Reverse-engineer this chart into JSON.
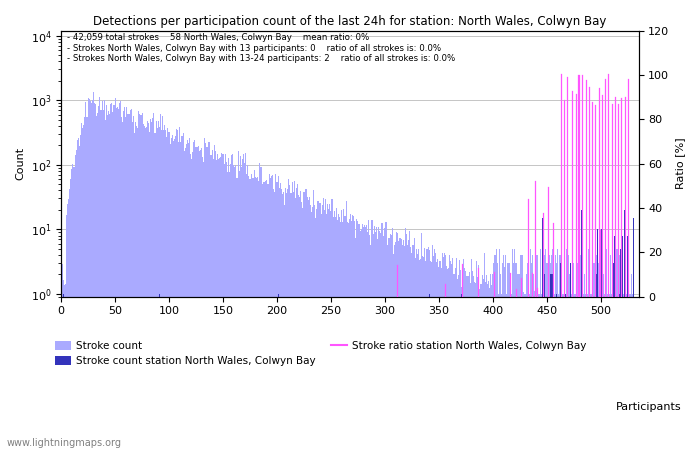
{
  "title": "Detections per participation count of the last 24h for station: North Wales, Colwyn Bay",
  "annotation_lines": [
    "42,059 total strokes    58 North Wales, Colwyn Bay    mean ratio: 0%",
    "Strokes North Wales, Colwyn Bay with 13 participants: 0    ratio of all strokes is: 0.0%",
    "Strokes North Wales, Colwyn Bay with 13-24 participants: 2    ratio of all strokes is: 0.0%"
  ],
  "xlabel": "Participants",
  "ylabel_left": "Count",
  "ylabel_right": "Ratio [%]",
  "xlim": [
    0,
    535
  ],
  "ylim_left": [
    0.9,
    12000
  ],
  "ylim_right": [
    0,
    120
  ],
  "bar_color_global": "#aaaaff",
  "bar_color_station": "#3333bb",
  "line_color_ratio": "#ff55ff",
  "grid_color": "#bbbbbb",
  "watermark": "www.lightningmaps.org",
  "legend_stroke_count": "Stroke count",
  "legend_station_count": "Stroke count station North Wales, Colwyn Bay",
  "legend_station_ratio": "Stroke ratio station North Wales, Colwyn Bay",
  "xticks": [
    0,
    50,
    100,
    150,
    200,
    250,
    300,
    350,
    400,
    450,
    500
  ],
  "yticks_right": [
    0,
    20,
    40,
    60,
    80,
    100,
    120
  ]
}
